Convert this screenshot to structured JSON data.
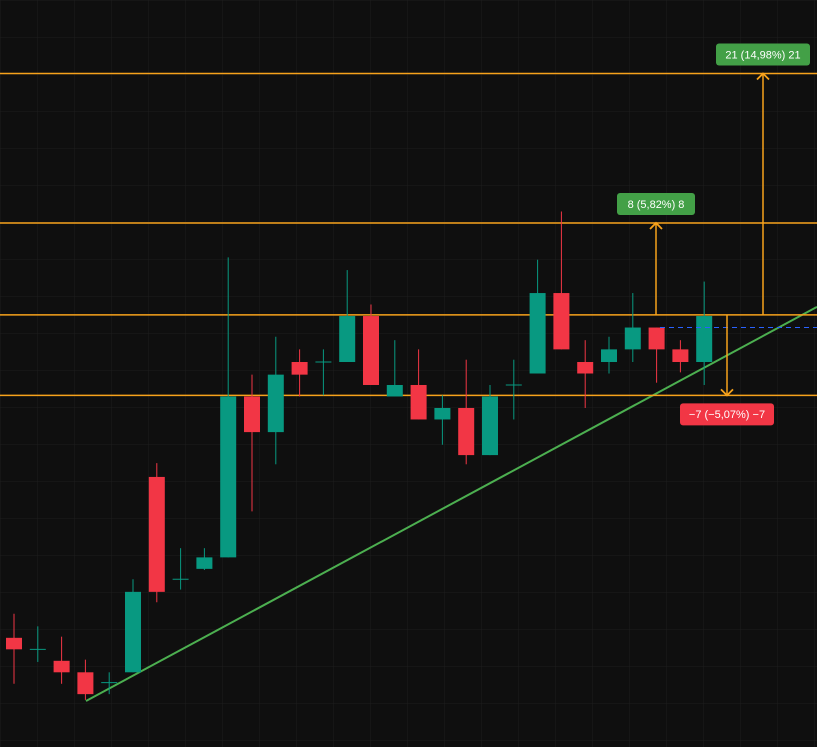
{
  "chart_data": {
    "type": "candlestick",
    "ylim": [
      102.4,
      167.4
    ],
    "up_color": "#089981",
    "down_color": "#f23645",
    "open": [
      111.9,
      110.9,
      109.9,
      108.9,
      108.0,
      108.9,
      125.9,
      117.0,
      117.9,
      118.9,
      132.9,
      129.8,
      135.9,
      135.9,
      135.9,
      139.9,
      132.9,
      133.9,
      130.9,
      131.9,
      127.8,
      133.9,
      134.9,
      141.9,
      135.9,
      135.9,
      137.0,
      138.9,
      137.0,
      135.9
    ],
    "high": [
      114.0,
      112.9,
      112.0,
      110.0,
      108.9,
      117.0,
      127.1,
      119.7,
      119.7,
      145.0,
      134.8,
      138.1,
      137.0,
      137.0,
      143.9,
      140.9,
      137.8,
      137.0,
      133.0,
      136.1,
      133.9,
      136.1,
      144.8,
      149.0,
      137.8,
      138.1,
      141.9,
      138.9,
      137.8,
      142.9
    ],
    "low": [
      107.9,
      109.8,
      107.9,
      106.5,
      107.0,
      108.9,
      115.0,
      116.1,
      117.8,
      118.9,
      122.9,
      127.0,
      132.9,
      133.0,
      135.9,
      133.9,
      132.9,
      130.9,
      128.7,
      127.0,
      127.8,
      130.9,
      134.9,
      137.0,
      131.9,
      134.9,
      135.9,
      134.1,
      135.0,
      133.9
    ],
    "close": [
      110.9,
      110.9,
      108.9,
      107.0,
      108.0,
      115.9,
      115.9,
      117.0,
      118.9,
      132.9,
      129.8,
      134.8,
      134.8,
      135.9,
      139.9,
      133.9,
      133.9,
      130.9,
      131.9,
      127.8,
      132.9,
      133.9,
      141.9,
      137.0,
      134.9,
      137.0,
      138.9,
      137.0,
      135.9,
      139.9
    ],
    "base_level": 140,
    "level_color": "#f7a21b",
    "measures": [
      {
        "to": 161,
        "label": "21 (14,98%) 21",
        "color": "#43a047"
      },
      {
        "to": 148,
        "label": "8 (5,82%) 8",
        "color": "#43a047"
      },
      {
        "to": 133,
        "label": "−7 (−5,07%) −7",
        "color": "#f23645"
      }
    ],
    "price_line": {
      "value": 138.9,
      "color": "#2962ff"
    },
    "trendline": {
      "from": 106.4,
      "to": 140.7,
      "color": "#4caf50"
    }
  }
}
